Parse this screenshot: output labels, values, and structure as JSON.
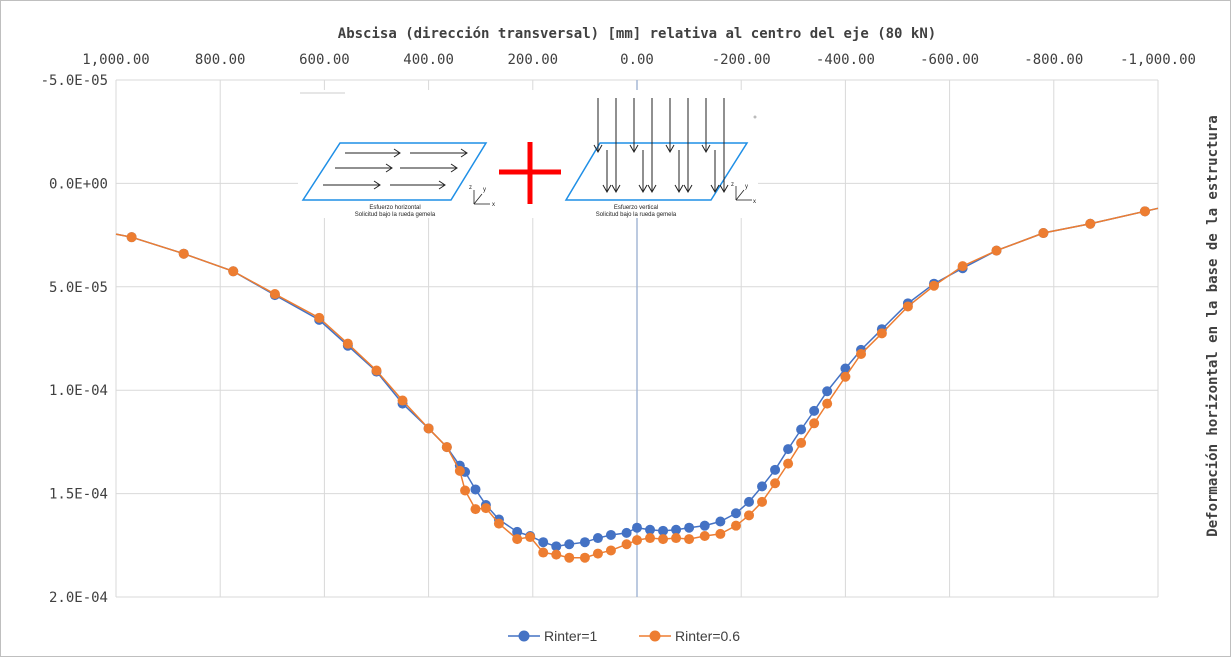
{
  "chart_data": {
    "type": "scatter",
    "title": "Abscisa (dirección transversal) [mm] relativa al centro del eje (80 kN)",
    "ylabel": "Deformación horizontal en la base de la estructura",
    "xlim": [
      1000,
      -1000
    ],
    "ylim": [
      -5e-05,
      0.0002
    ],
    "x_ticks": [
      "1,000.00",
      "800.00",
      "600.00",
      "400.00",
      "200.00",
      "0.00",
      "-200.00",
      "-400.00",
      "-600.00",
      "-800.00",
      "-1,000.00"
    ],
    "y_ticks": [
      "-5.0E-05",
      "0.0E+00",
      "5.0E-05",
      "1.0E-04",
      "1.5E-04",
      "2.0E-04"
    ],
    "x_axis_position": "top",
    "y_axis_reversed": true,
    "grid": true,
    "reference_line_x": 0,
    "legend_position": "bottom",
    "colors": {
      "Rinter=1": "#4472C4",
      "Rinter=0.6": "#ED7D31",
      "grid": "#d9d9d9",
      "refline": "#a5b8d6",
      "plus": "#ff0000",
      "parallelogram": "#1f8fe6"
    },
    "series": [
      {
        "name": "Rinter=1",
        "x": [
          970,
          870,
          775,
          695,
          610,
          555,
          500,
          450,
          400,
          365,
          340,
          330,
          310,
          290,
          265,
          230,
          205,
          180,
          155,
          130,
          100,
          75,
          50,
          20,
          0,
          -25,
          -50,
          -75,
          -100,
          -130,
          -160,
          -190,
          -215,
          -240,
          -265,
          -290,
          -315,
          -340,
          -365,
          -400,
          -430,
          -470,
          -520,
          -570,
          -625,
          -690,
          -780,
          -870,
          -975
        ],
        "y": [
          2.6e-05,
          3.4e-05,
          4.25e-05,
          5.4e-05,
          6.6e-05,
          7.85e-05,
          9.1e-05,
          0.0001065,
          0.0001185,
          0.0001275,
          0.0001365,
          0.0001395,
          0.000148,
          0.0001555,
          0.0001625,
          0.0001685,
          0.0001705,
          0.0001735,
          0.0001755,
          0.0001745,
          0.0001735,
          0.0001715,
          0.00017,
          0.000169,
          0.0001665,
          0.0001675,
          0.000168,
          0.0001675,
          0.0001665,
          0.0001655,
          0.0001635,
          0.0001595,
          0.000154,
          0.0001465,
          0.0001385,
          0.0001285,
          0.000119,
          0.00011,
          0.0001005,
          8.95e-05,
          8.05e-05,
          7.05e-05,
          5.8e-05,
          4.85e-05,
          4.1e-05,
          3.25e-05,
          2.4e-05,
          1.95e-05,
          1.35e-05
        ]
      },
      {
        "name": "Rinter=0.6",
        "x": [
          970,
          870,
          775,
          695,
          610,
          555,
          500,
          450,
          400,
          365,
          340,
          330,
          310,
          290,
          265,
          230,
          205,
          180,
          155,
          130,
          100,
          75,
          50,
          20,
          0,
          -25,
          -50,
          -75,
          -100,
          -130,
          -160,
          -190,
          -215,
          -240,
          -265,
          -290,
          -315,
          -340,
          -365,
          -400,
          -430,
          -470,
          -520,
          -570,
          -625,
          -690,
          -780,
          -870,
          -975
        ],
        "y": [
          2.6e-05,
          3.4e-05,
          4.25e-05,
          5.35e-05,
          6.5e-05,
          7.75e-05,
          9.05e-05,
          0.000105,
          0.0001185,
          0.0001275,
          0.000139,
          0.0001485,
          0.0001575,
          0.000157,
          0.0001645,
          0.000172,
          0.000171,
          0.0001785,
          0.0001795,
          0.000181,
          0.000181,
          0.000179,
          0.0001775,
          0.0001745,
          0.0001725,
          0.0001715,
          0.000172,
          0.0001715,
          0.000172,
          0.0001705,
          0.0001695,
          0.0001655,
          0.0001605,
          0.000154,
          0.000145,
          0.0001355,
          0.0001255,
          0.000116,
          0.0001065,
          9.35e-05,
          8.25e-05,
          7.25e-05,
          5.95e-05,
          4.95e-05,
          4e-05,
          3.25e-05,
          2.4e-05,
          1.95e-05,
          1.35e-05
        ]
      }
    ],
    "inset": {
      "left_caption": [
        "Esfuerzo horizontal",
        "Solicitud bajo la rueda gemela"
      ],
      "right_caption": [
        "Esfuerzo vertical",
        "Solicitud bajo la rueda gemela"
      ],
      "axis_letters": [
        "z",
        "y",
        "x"
      ]
    }
  }
}
